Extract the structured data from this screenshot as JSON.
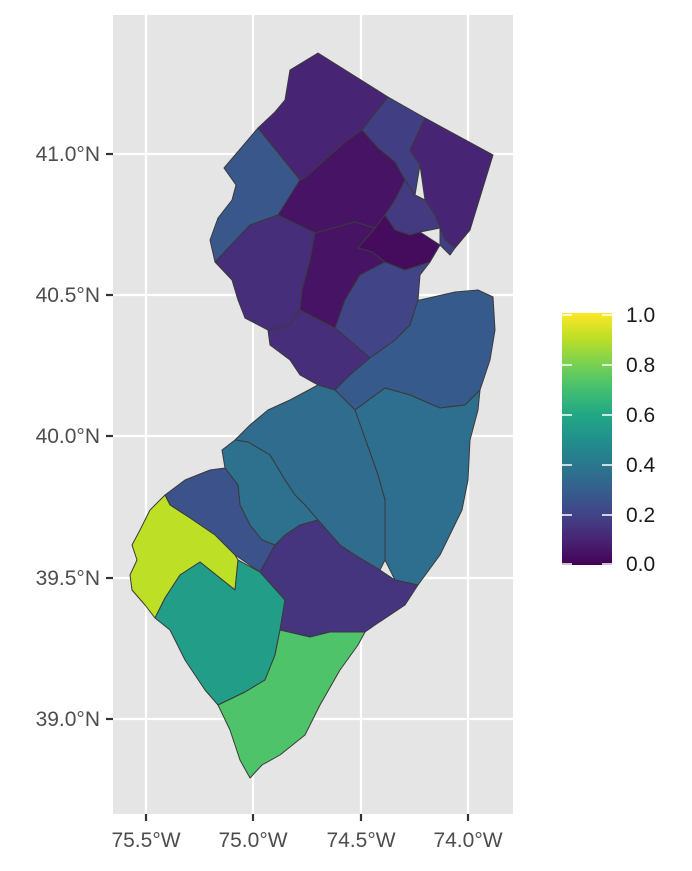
{
  "map": {
    "x_ticks": [
      "75.5°W",
      "75.0°W",
      "74.5°W",
      "74.0°W"
    ],
    "y_ticks": [
      "41.0°N",
      "40.5°N",
      "40.0°N",
      "39.5°N",
      "39.0°N"
    ],
    "panel_background": "#e5e5e5",
    "grid_color": "#ffffff",
    "palette": "viridis"
  },
  "legend": {
    "labels": [
      "1.0",
      "0.8",
      "0.6",
      "0.4",
      "0.2",
      "0.0"
    ],
    "range": [
      0,
      1
    ]
  },
  "counties": [
    {
      "id": "sussex",
      "value": 0.1
    },
    {
      "id": "passaic",
      "value": 0.18
    },
    {
      "id": "bergen",
      "value": 0.1
    },
    {
      "id": "warren",
      "value": 0.27
    },
    {
      "id": "morris",
      "value": 0.05
    },
    {
      "id": "essex",
      "value": 0.17
    },
    {
      "id": "hudson",
      "value": 0.18
    },
    {
      "id": "union",
      "value": 0.03
    },
    {
      "id": "hunterdon",
      "value": 0.13
    },
    {
      "id": "somerset",
      "value": 0.05
    },
    {
      "id": "middlesex",
      "value": 0.2
    },
    {
      "id": "mercer",
      "value": 0.13
    },
    {
      "id": "monmouth",
      "value": 0.28
    },
    {
      "id": "ocean",
      "value": 0.36
    },
    {
      "id": "burlington",
      "value": 0.35
    },
    {
      "id": "camden",
      "value": 0.37
    },
    {
      "id": "gloucester",
      "value": 0.25
    },
    {
      "id": "salem",
      "value": 0.9
    },
    {
      "id": "cumberland",
      "value": 0.55
    },
    {
      "id": "atlantic",
      "value": 0.15
    },
    {
      "id": "cape_may",
      "value": 0.72
    }
  ]
}
